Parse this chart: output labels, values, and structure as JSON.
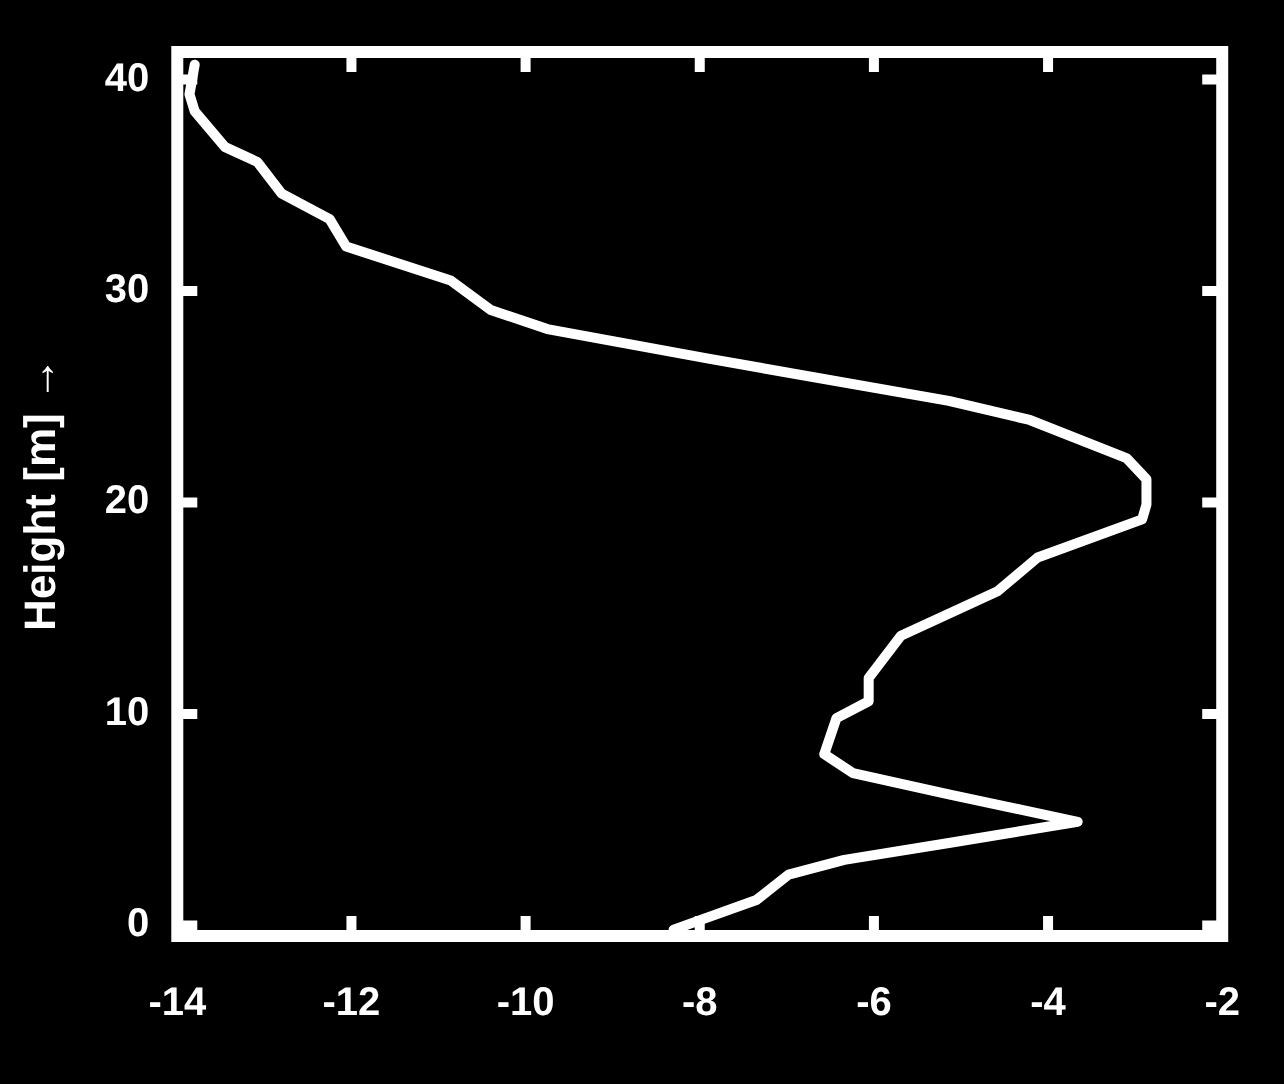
{
  "chart_data": {
    "type": "line",
    "ylabel": "Height [m] →",
    "xlim": [
      -14,
      -2
    ],
    "xticks": [
      -14,
      -12,
      -10,
      -8,
      -6,
      -4,
      -2
    ],
    "ylim": [
      -0.5,
      41.3
    ],
    "yticks": [
      0,
      10,
      20,
      30,
      40
    ],
    "grid": false,
    "legend": false,
    "marker": "none",
    "line_style": "solid",
    "series": [
      {
        "color": "#ffffff",
        "x": [
          -8.3,
          -7.35,
          -6.98,
          -6.34,
          -5.14,
          -3.66,
          -5.14,
          -6.24,
          -6.57,
          -6.43,
          -6.06,
          -6.06,
          -5.69,
          -4.58,
          -4.12,
          -2.92,
          -2.87,
          -2.87,
          -3.1,
          -4.21,
          -5.14,
          -7.9,
          -9.75,
          -10.4,
          -10.86,
          -12.06,
          -12.25,
          -12.8,
          -13.08,
          -13.45,
          -13.8,
          -13.86,
          -13.8
        ],
        "values": [
          -0.2,
          1.2,
          2.4,
          3.1,
          3.9,
          4.9,
          6.2,
          7.2,
          8.1,
          9.8,
          10.6,
          11.7,
          13.7,
          15.8,
          17.4,
          19.2,
          19.9,
          21.1,
          22.1,
          23.9,
          24.8,
          26.8,
          28.2,
          29.1,
          30.5,
          32.1,
          33.4,
          34.6,
          36.1,
          36.8,
          38.5,
          39.3,
          40.7
        ]
      }
    ]
  }
}
